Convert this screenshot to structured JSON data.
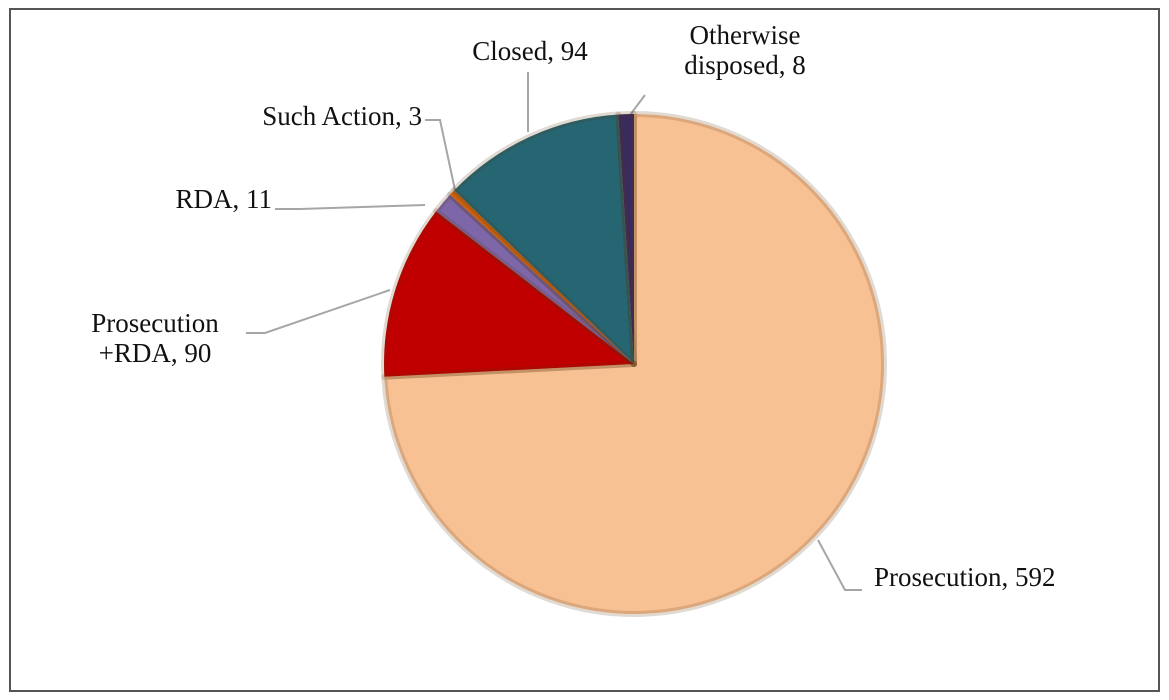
{
  "chart_data": {
    "type": "pie",
    "values": [
      592,
      90,
      11,
      3,
      94,
      8
    ],
    "value_labels": [
      "Prosecution, 592",
      "Prosecution +RDA, 90",
      "RDA, 11",
      "Such Action, 3",
      "Closed, 94",
      "Otherwise disposed, 8"
    ],
    "colors": [
      "#f8c194",
      "#c00000",
      "#7e67a8",
      "#e46c0a",
      "#266673",
      "#3b2b5c"
    ]
  }
}
